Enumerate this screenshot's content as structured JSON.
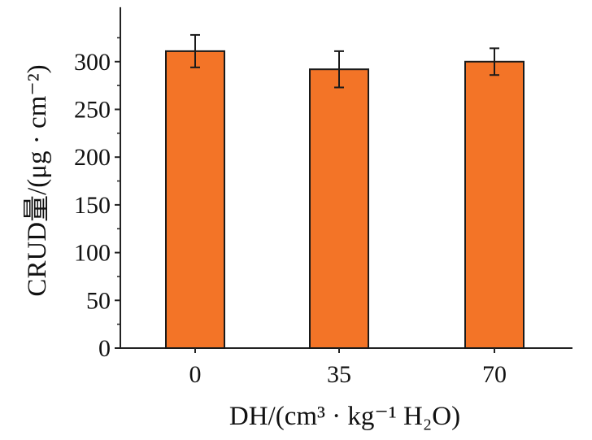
{
  "chart_data": {
    "type": "bar",
    "categories": [
      "0",
      "35",
      "70"
    ],
    "values": [
      311,
      292,
      300
    ],
    "errors": [
      17,
      19,
      14
    ],
    "ylim": [
      0,
      340
    ],
    "yticks": [
      0,
      50,
      100,
      150,
      200,
      250,
      300
    ],
    "xlabel": "DH/(cm³ · kg⁻¹ H₂O)",
    "ylabel": "CRUD量/(μg · cm⁻²)",
    "title": "",
    "grid": false,
    "legend": "none",
    "colors": {
      "bar_fill": "#f37427",
      "bar_stroke": "#1a1a1a",
      "axis": "#222222"
    }
  }
}
